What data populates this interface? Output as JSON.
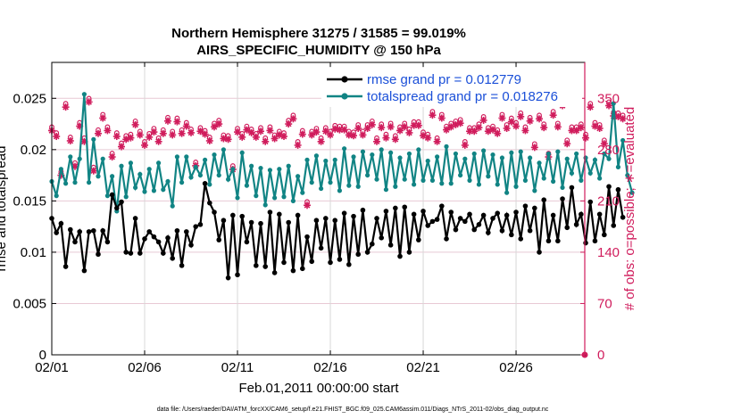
{
  "colors": {
    "rmse": "#000000",
    "spread": "#118484",
    "obs": "#d01c5c",
    "grid_y": "#e8c9d4",
    "grid_x": "#d8d8d8",
    "legend_text": "#1a4fd8"
  },
  "chart_data": {
    "type": "line",
    "title": "Northern Hemisphere 31275 / 31585 = 99.019%",
    "subtitle": "AIRS_SPECIFIC_HUMIDITY @ 150 hPa",
    "xlabel": "Feb.01,2011 00:00:00 start",
    "ylabel": "rmse and totalspread",
    "ylabel_right": "# of obs: o=possible; ∗=evaluated",
    "xlim": [
      1,
      29.7
    ],
    "ylim": [
      0,
      0.0285
    ],
    "ylim_right": [
      0,
      399
    ],
    "x_ticks": [
      {
        "v": 1,
        "label": "02/01"
      },
      {
        "v": 6,
        "label": "02/06"
      },
      {
        "v": 11,
        "label": "02/11"
      },
      {
        "v": 16,
        "label": "02/16"
      },
      {
        "v": 21,
        "label": "02/21"
      },
      {
        "v": 26,
        "label": "02/26"
      }
    ],
    "y_ticks": [
      {
        "v": 0,
        "label": "0"
      },
      {
        "v": 0.005,
        "label": "0.005"
      },
      {
        "v": 0.01,
        "label": "0.01"
      },
      {
        "v": 0.015,
        "label": "0.015"
      },
      {
        "v": 0.02,
        "label": "0.02"
      },
      {
        "v": 0.025,
        "label": "0.025"
      }
    ],
    "y_ticks_right": [
      {
        "v": 0,
        "label": "0"
      },
      {
        "v": 70,
        "label": "70"
      },
      {
        "v": 140,
        "label": "140"
      },
      {
        "v": 210,
        "label": "210"
      },
      {
        "v": 280,
        "label": "280"
      },
      {
        "v": 350,
        "label": "350"
      }
    ],
    "grid": true,
    "legend_position": "top-right",
    "series": [
      {
        "name": "rmse grand pr = 0.012779",
        "axis": "left",
        "marker": "star",
        "x_start": 1.0,
        "x_step": 0.25,
        "values": [
          0.0133,
          0.0119,
          0.0128,
          0.0086,
          0.0122,
          0.011,
          0.012,
          0.0082,
          0.012,
          0.0121,
          0.0098,
          0.0121,
          0.011,
          0.0156,
          0.0143,
          0.0149,
          0.01,
          0.0099,
          0.0133,
          0.0099,
          0.0113,
          0.012,
          0.0115,
          0.011,
          0.0099,
          0.0114,
          0.0094,
          0.0121,
          0.0087,
          0.012,
          0.0107,
          0.0125,
          0.0127,
          0.0167,
          0.0148,
          0.0139,
          0.0112,
          0.0131,
          0.0075,
          0.0136,
          0.0078,
          0.0135,
          0.011,
          0.0129,
          0.0087,
          0.0128,
          0.0086,
          0.0139,
          0.008,
          0.0137,
          0.009,
          0.0129,
          0.0082,
          0.0136,
          0.0084,
          0.0115,
          0.0091,
          0.0131,
          0.0104,
          0.0133,
          0.009,
          0.0131,
          0.0093,
          0.0138,
          0.0088,
          0.0135,
          0.0098,
          0.0141,
          0.01,
          0.0108,
          0.0133,
          0.0114,
          0.014,
          0.0107,
          0.0143,
          0.0096,
          0.0144,
          0.01,
          0.0137,
          0.0112,
          0.014,
          0.0126,
          0.013,
          0.0132,
          0.0145,
          0.0113,
          0.0139,
          0.0122,
          0.0133,
          0.013,
          0.0137,
          0.0122,
          0.0127,
          0.0136,
          0.0119,
          0.0133,
          0.0138,
          0.0121,
          0.0136,
          0.0117,
          0.0139,
          0.0113,
          0.0145,
          0.0121,
          0.0143,
          0.01,
          0.0151,
          0.0111,
          0.0136,
          0.0111,
          0.0152,
          0.0124,
          0.0163,
          0.0127,
          0.0137,
          0.0109,
          0.0149,
          0.0111,
          0.0137,
          0.0117,
          0.0164,
          0.0126,
          0.0161,
          0.0134
        ]
      },
      {
        "name": "totalspread grand pr = 0.018276",
        "axis": "left",
        "marker": "dot",
        "x_start": 1.0,
        "x_step": 0.25,
        "values": [
          0.0169,
          0.0155,
          0.0181,
          0.0167,
          0.0193,
          0.0168,
          0.0191,
          0.0254,
          0.0168,
          0.021,
          0.0174,
          0.0191,
          0.0155,
          0.0174,
          0.014,
          0.0184,
          0.0154,
          0.0187,
          0.0163,
          0.0176,
          0.0159,
          0.0181,
          0.016,
          0.0187,
          0.0161,
          0.0169,
          0.0145,
          0.0193,
          0.0168,
          0.0193,
          0.0173,
          0.0183,
          0.0175,
          0.019,
          0.0166,
          0.0195,
          0.0175,
          0.02,
          0.0171,
          0.0181,
          0.0153,
          0.0197,
          0.0165,
          0.0184,
          0.0155,
          0.0182,
          0.0146,
          0.018,
          0.0153,
          0.0181,
          0.0154,
          0.0184,
          0.015,
          0.0174,
          0.0158,
          0.019,
          0.0168,
          0.0194,
          0.0162,
          0.0189,
          0.0168,
          0.019,
          0.016,
          0.0201,
          0.0165,
          0.0193,
          0.0164,
          0.0198,
          0.0175,
          0.0195,
          0.0171,
          0.02,
          0.0161,
          0.0197,
          0.0164,
          0.0192,
          0.0171,
          0.0196,
          0.0166,
          0.02,
          0.017,
          0.0189,
          0.017,
          0.0193,
          0.0167,
          0.0203,
          0.0167,
          0.0196,
          0.0175,
          0.0191,
          0.017,
          0.0196,
          0.0166,
          0.0199,
          0.0174,
          0.0195,
          0.0166,
          0.0192,
          0.0158,
          0.0197,
          0.0164,
          0.0198,
          0.017,
          0.0192,
          0.016,
          0.0187,
          0.0172,
          0.0196,
          0.0169,
          0.0198,
          0.0163,
          0.0191,
          0.0177,
          0.0196,
          0.017,
          0.0192,
          0.0177,
          0.019,
          0.0172,
          0.0196,
          0.0191,
          0.0245,
          0.0183,
          0.0209,
          0.0175,
          0.0158
        ]
      },
      {
        "name": "# of obs possible",
        "axis": "right",
        "marker": "circle",
        "x_start": 1.0,
        "x_step": 0.25,
        "values": [
          306,
          298,
          245,
          338,
          292,
          257,
          312,
          291,
          345,
          251,
          302,
          323,
          306,
          270,
          298,
          284,
          294,
          296,
          314,
          300,
          286,
          297,
          304,
          291,
          302,
          319,
          300,
          318,
          302,
          312,
          303,
          258,
          305,
          301,
          292,
          311,
          315,
          295,
          294,
          253,
          304,
          297,
          307,
          303,
          297,
          305,
          291,
          306,
          295,
          300,
          298,
          315,
          322,
          286,
          301,
          204,
          300,
          304,
          291,
          305,
          300,
          308,
          307,
          307,
          300,
          299,
          309,
          300,
          309,
          314,
          291,
          310,
          296,
          311,
          294,
          306,
          311,
          303,
          313,
          313,
          299,
          296,
          327,
          291,
          323,
          307,
          311,
          314,
          316,
          286,
          305,
          305,
          310,
          320,
          305,
          307,
          302,
          323,
          309,
          318,
          312,
          325,
          306,
          319,
          283,
          322,
          310,
          270,
          327,
          311,
          340,
          288,
          306,
          306,
          310,
          296,
          338,
          312,
          309,
          288,
          340,
          326,
          325,
          322
        ]
      },
      {
        "name": "# of obs evaluated",
        "axis": "right",
        "marker": "asterisk",
        "x_start": 1.0,
        "x_step": 0.25,
        "values": [
          306,
          298,
          245,
          338,
          292,
          257,
          312,
          291,
          345,
          251,
          302,
          323,
          306,
          270,
          298,
          284,
          294,
          296,
          314,
          300,
          286,
          297,
          304,
          291,
          302,
          319,
          300,
          318,
          302,
          312,
          303,
          258,
          305,
          301,
          292,
          311,
          315,
          295,
          294,
          253,
          304,
          297,
          307,
          303,
          297,
          305,
          291,
          306,
          295,
          300,
          298,
          315,
          322,
          286,
          301,
          204,
          300,
          304,
          291,
          305,
          300,
          308,
          307,
          307,
          300,
          299,
          309,
          300,
          309,
          314,
          291,
          310,
          296,
          311,
          294,
          306,
          311,
          303,
          313,
          313,
          299,
          296,
          327,
          291,
          323,
          307,
          311,
          314,
          316,
          286,
          305,
          305,
          310,
          320,
          305,
          307,
          302,
          323,
          309,
          318,
          312,
          325,
          306,
          319,
          283,
          322,
          310,
          270,
          327,
          311,
          340,
          288,
          306,
          306,
          310,
          296,
          338,
          312,
          309,
          288,
          340,
          326,
          325,
          322
        ]
      }
    ],
    "footnote": "data file: /Users/raeder/DAI/ATM_forcXX/CAM6_setup/f.e21.FHIST_BGC.f09_025.CAM6assim.011/Diags_NTrS_2011-02/obs_diag_output.nc"
  }
}
